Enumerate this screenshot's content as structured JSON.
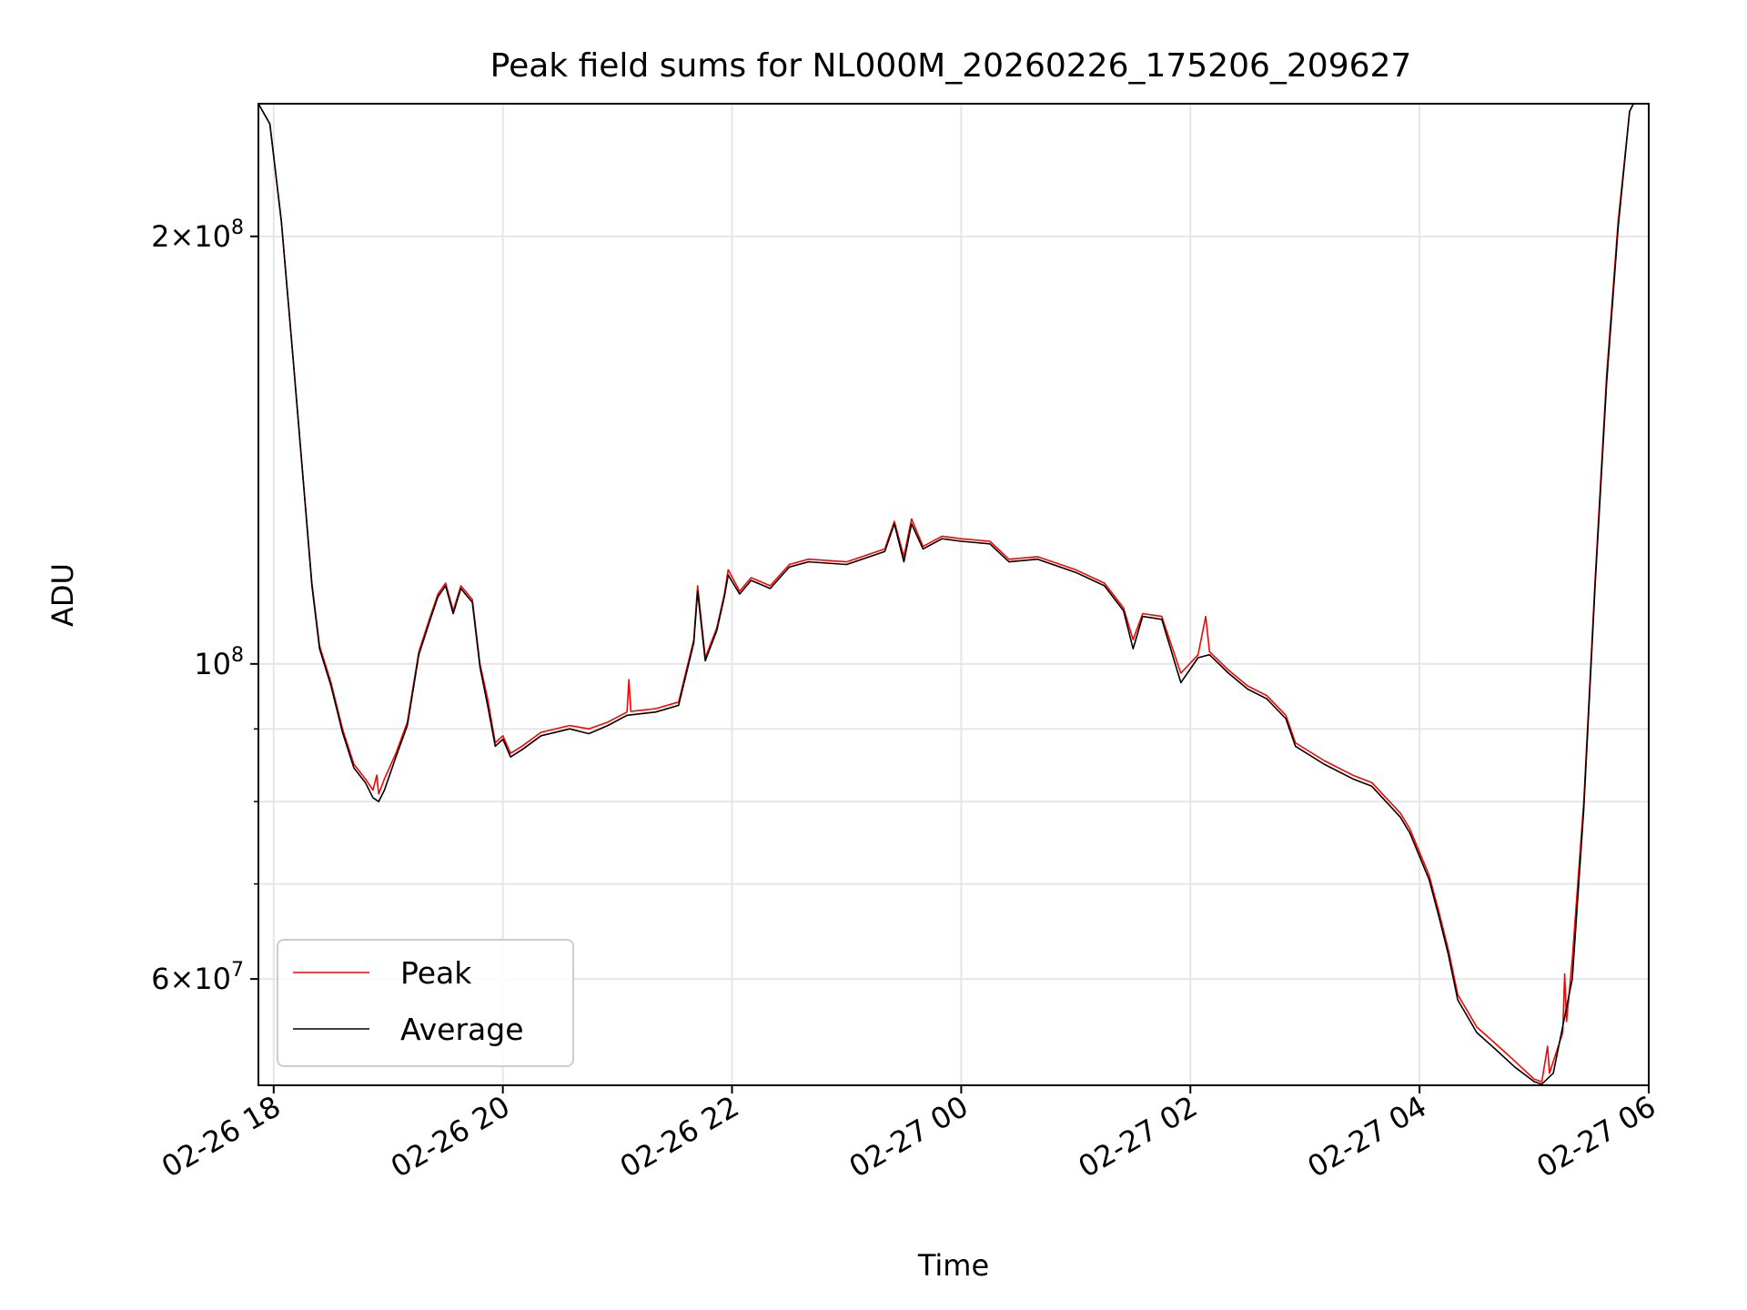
{
  "chart_data": {
    "type": "line",
    "title": "Peak field sums for NL000M_20260226_175206_209627",
    "xlabel": "Time",
    "ylabel": "ADU",
    "y_scale": "log",
    "grid": true,
    "legend_position": "lower-left",
    "xlim": [
      "2026-02-26 17:52",
      "2026-02-27 06:00"
    ],
    "ylim": [
      50500000,
      248000000
    ],
    "x_ticks": [
      {
        "value": "2026-02-26 18:00",
        "label": "02-26 18"
      },
      {
        "value": "2026-02-26 20:00",
        "label": "02-26 20"
      },
      {
        "value": "2026-02-26 22:00",
        "label": "02-26 22"
      },
      {
        "value": "2026-02-27 00:00",
        "label": "02-27 00"
      },
      {
        "value": "2026-02-27 02:00",
        "label": "02-27 02"
      },
      {
        "value": "2026-02-27 04:00",
        "label": "02-27 04"
      },
      {
        "value": "2026-02-27 06:00",
        "label": "02-27 06"
      }
    ],
    "y_major_ticks": [
      {
        "value": 200000000,
        "base": "2×10",
        "exp": "8"
      },
      {
        "value": 100000000,
        "base": "10",
        "exp": "8"
      },
      {
        "value": 60000000,
        "base": "6×10",
        "exp": "7"
      }
    ],
    "y_minor_ticks": [
      70000000,
      80000000,
      90000000
    ],
    "series": [
      {
        "name": "Peak",
        "color": "#ff0000",
        "points": [
          [
            "2026-02-26 17:52",
            248000000
          ],
          [
            "2026-02-26 17:58",
            240000000
          ],
          [
            "2026-02-26 18:04",
            205000000
          ],
          [
            "2026-02-26 18:10",
            165000000
          ],
          [
            "2026-02-26 18:16",
            132000000
          ],
          [
            "2026-02-26 18:20",
            114000000
          ],
          [
            "2026-02-26 18:24",
            103000000
          ],
          [
            "2026-02-26 18:30",
            97000000
          ],
          [
            "2026-02-26 18:36",
            90000000
          ],
          [
            "2026-02-26 18:42",
            85000000
          ],
          [
            "2026-02-26 18:48",
            83000000
          ],
          [
            "2026-02-26 18:52",
            81500000
          ],
          [
            "2026-02-26 18:54",
            83500000
          ],
          [
            "2026-02-26 18:55",
            81000000
          ],
          [
            "2026-02-26 18:58",
            83000000
          ],
          [
            "2026-02-26 19:04",
            86500000
          ],
          [
            "2026-02-26 19:10",
            91000000
          ],
          [
            "2026-02-26 19:16",
            102000000
          ],
          [
            "2026-02-26 19:22",
            108000000
          ],
          [
            "2026-02-26 19:26",
            112000000
          ],
          [
            "2026-02-26 19:30",
            114000000
          ],
          [
            "2026-02-26 19:34",
            109000000
          ],
          [
            "2026-02-26 19:38",
            113500000
          ],
          [
            "2026-02-26 19:44",
            111000000
          ],
          [
            "2026-02-26 19:48",
            100000000
          ],
          [
            "2026-02-26 19:52",
            94500000
          ],
          [
            "2026-02-26 19:56",
            88000000
          ],
          [
            "2026-02-26 20:00",
            89000000
          ],
          [
            "2026-02-26 20:04",
            86500000
          ],
          [
            "2026-02-26 20:10",
            87500000
          ],
          [
            "2026-02-26 20:20",
            89500000
          ],
          [
            "2026-02-26 20:35",
            90500000
          ],
          [
            "2026-02-26 20:45",
            90000000
          ],
          [
            "2026-02-26 20:55",
            91000000
          ],
          [
            "2026-02-26 21:05",
            92500000
          ],
          [
            "2026-02-26 21:06",
            97500000
          ],
          [
            "2026-02-26 21:07",
            92600000
          ],
          [
            "2026-02-26 21:20",
            93000000
          ],
          [
            "2026-02-26 21:32",
            94000000
          ],
          [
            "2026-02-26 21:40",
            104000000
          ],
          [
            "2026-02-26 21:42",
            113500000
          ],
          [
            "2026-02-26 21:46",
            101000000
          ],
          [
            "2026-02-26 21:52",
            106000000
          ],
          [
            "2026-02-26 21:56",
            112000000
          ],
          [
            "2026-02-26 21:58",
            116500000
          ],
          [
            "2026-02-26 22:04",
            112500000
          ],
          [
            "2026-02-26 22:10",
            115000000
          ],
          [
            "2026-02-26 22:20",
            113500000
          ],
          [
            "2026-02-26 22:30",
            117500000
          ],
          [
            "2026-02-26 22:40",
            118500000
          ],
          [
            "2026-02-26 23:00",
            118000000
          ],
          [
            "2026-02-26 23:20",
            120500000
          ],
          [
            "2026-02-26 23:25",
            126000000
          ],
          [
            "2026-02-26 23:30",
            119000000
          ],
          [
            "2026-02-26 23:34",
            126500000
          ],
          [
            "2026-02-26 23:40",
            121000000
          ],
          [
            "2026-02-26 23:50",
            123000000
          ],
          [
            "2026-02-27 00:00",
            122500000
          ],
          [
            "2026-02-27 00:15",
            122000000
          ],
          [
            "2026-02-27 00:25",
            118500000
          ],
          [
            "2026-02-27 00:40",
            119000000
          ],
          [
            "2026-02-27 01:00",
            116500000
          ],
          [
            "2026-02-27 01:15",
            114000000
          ],
          [
            "2026-02-27 01:25",
            109500000
          ],
          [
            "2026-02-27 01:30",
            104000000
          ],
          [
            "2026-02-27 01:35",
            108500000
          ],
          [
            "2026-02-27 01:45",
            108000000
          ],
          [
            "2026-02-27 01:55",
            98500000
          ],
          [
            "2026-02-27 02:04",
            101500000
          ],
          [
            "2026-02-27 02:08",
            108000000
          ],
          [
            "2026-02-27 02:10",
            102000000
          ],
          [
            "2026-02-27 02:20",
            99000000
          ],
          [
            "2026-02-27 02:30",
            96500000
          ],
          [
            "2026-02-27 02:40",
            95000000
          ],
          [
            "2026-02-27 02:50",
            92000000
          ],
          [
            "2026-02-27 02:55",
            88000000
          ],
          [
            "2026-02-27 03:10",
            85500000
          ],
          [
            "2026-02-27 03:25",
            83500000
          ],
          [
            "2026-02-27 03:35",
            82500000
          ],
          [
            "2026-02-27 03:50",
            78500000
          ],
          [
            "2026-02-27 03:55",
            76500000
          ],
          [
            "2026-02-27 04:05",
            71000000
          ],
          [
            "2026-02-27 04:10",
            67000000
          ],
          [
            "2026-02-27 04:15",
            63000000
          ],
          [
            "2026-02-27 04:20",
            58500000
          ],
          [
            "2026-02-27 04:30",
            55500000
          ],
          [
            "2026-02-27 04:40",
            54000000
          ],
          [
            "2026-02-27 04:50",
            52500000
          ],
          [
            "2026-02-27 05:00",
            51000000
          ],
          [
            "2026-02-27 05:04",
            50800000
          ],
          [
            "2026-02-27 05:07",
            53800000
          ],
          [
            "2026-02-27 05:08",
            51500000
          ],
          [
            "2026-02-27 05:15",
            55000000
          ],
          [
            "2026-02-27 05:16",
            60500000
          ],
          [
            "2026-02-27 05:17",
            56000000
          ],
          [
            "2026-02-27 05:20",
            62000000
          ],
          [
            "2026-02-27 05:26",
            80000000
          ],
          [
            "2026-02-27 05:32",
            115000000
          ],
          [
            "2026-02-27 05:38",
            160000000
          ],
          [
            "2026-02-27 05:44",
            205000000
          ],
          [
            "2026-02-27 05:50",
            245000000
          ],
          [
            "2026-02-27 05:52",
            248000000
          ]
        ]
      },
      {
        "name": "Average",
        "color": "#000000",
        "points": [
          [
            "2026-02-26 17:52",
            248000000
          ],
          [
            "2026-02-26 17:58",
            240000000
          ],
          [
            "2026-02-26 18:04",
            205000000
          ],
          [
            "2026-02-26 18:10",
            165000000
          ],
          [
            "2026-02-26 18:16",
            132000000
          ],
          [
            "2026-02-26 18:20",
            113500000
          ],
          [
            "2026-02-26 18:24",
            102500000
          ],
          [
            "2026-02-26 18:30",
            96500000
          ],
          [
            "2026-02-26 18:36",
            89500000
          ],
          [
            "2026-02-26 18:42",
            84500000
          ],
          [
            "2026-02-26 18:48",
            82500000
          ],
          [
            "2026-02-26 18:52",
            80500000
          ],
          [
            "2026-02-26 18:55",
            80000000
          ],
          [
            "2026-02-26 18:58",
            81500000
          ],
          [
            "2026-02-26 19:04",
            86000000
          ],
          [
            "2026-02-26 19:10",
            90500000
          ],
          [
            "2026-02-26 19:16",
            101500000
          ],
          [
            "2026-02-26 19:22",
            107500000
          ],
          [
            "2026-02-26 19:26",
            111500000
          ],
          [
            "2026-02-26 19:30",
            113500000
          ],
          [
            "2026-02-26 19:34",
            108500000
          ],
          [
            "2026-02-26 19:38",
            113000000
          ],
          [
            "2026-02-26 19:44",
            110500000
          ],
          [
            "2026-02-26 19:48",
            99500000
          ],
          [
            "2026-02-26 19:52",
            93500000
          ],
          [
            "2026-02-26 19:56",
            87500000
          ],
          [
            "2026-02-26 20:00",
            88500000
          ],
          [
            "2026-02-26 20:04",
            86000000
          ],
          [
            "2026-02-26 20:10",
            87000000
          ],
          [
            "2026-02-26 20:20",
            89000000
          ],
          [
            "2026-02-26 20:35",
            90000000
          ],
          [
            "2026-02-26 20:45",
            89300000
          ],
          [
            "2026-02-26 20:55",
            90500000
          ],
          [
            "2026-02-26 21:05",
            92000000
          ],
          [
            "2026-02-26 21:20",
            92500000
          ],
          [
            "2026-02-26 21:32",
            93500000
          ],
          [
            "2026-02-26 21:40",
            103500000
          ],
          [
            "2026-02-26 21:42",
            112500000
          ],
          [
            "2026-02-26 21:46",
            100500000
          ],
          [
            "2026-02-26 21:52",
            105500000
          ],
          [
            "2026-02-26 21:56",
            111500000
          ],
          [
            "2026-02-26 21:58",
            115500000
          ],
          [
            "2026-02-26 22:04",
            112000000
          ],
          [
            "2026-02-26 22:10",
            114500000
          ],
          [
            "2026-02-26 22:20",
            113000000
          ],
          [
            "2026-02-26 22:30",
            117000000
          ],
          [
            "2026-02-26 22:40",
            118000000
          ],
          [
            "2026-02-26 23:00",
            117500000
          ],
          [
            "2026-02-26 23:20",
            120000000
          ],
          [
            "2026-02-26 23:25",
            125500000
          ],
          [
            "2026-02-26 23:30",
            118000000
          ],
          [
            "2026-02-26 23:34",
            125500000
          ],
          [
            "2026-02-26 23:40",
            120500000
          ],
          [
            "2026-02-26 23:50",
            122500000
          ],
          [
            "2026-02-27 00:00",
            122000000
          ],
          [
            "2026-02-27 00:15",
            121500000
          ],
          [
            "2026-02-27 00:25",
            118000000
          ],
          [
            "2026-02-27 00:40",
            118500000
          ],
          [
            "2026-02-27 01:00",
            116000000
          ],
          [
            "2026-02-27 01:15",
            113500000
          ],
          [
            "2026-02-27 01:25",
            109000000
          ],
          [
            "2026-02-27 01:30",
            102500000
          ],
          [
            "2026-02-27 01:35",
            108000000
          ],
          [
            "2026-02-27 01:45",
            107500000
          ],
          [
            "2026-02-27 01:55",
            97000000
          ],
          [
            "2026-02-27 02:04",
            101000000
          ],
          [
            "2026-02-27 02:10",
            101500000
          ],
          [
            "2026-02-27 02:20",
            98500000
          ],
          [
            "2026-02-27 02:30",
            96000000
          ],
          [
            "2026-02-27 02:40",
            94500000
          ],
          [
            "2026-02-27 02:50",
            91500000
          ],
          [
            "2026-02-27 02:55",
            87500000
          ],
          [
            "2026-02-27 03:10",
            85000000
          ],
          [
            "2026-02-27 03:25",
            83000000
          ],
          [
            "2026-02-27 03:35",
            82000000
          ],
          [
            "2026-02-27 03:50",
            78000000
          ],
          [
            "2026-02-27 03:55",
            76000000
          ],
          [
            "2026-02-27 04:05",
            70500000
          ],
          [
            "2026-02-27 04:10",
            66500000
          ],
          [
            "2026-02-27 04:15",
            62500000
          ],
          [
            "2026-02-27 04:20",
            58000000
          ],
          [
            "2026-02-27 04:30",
            55000000
          ],
          [
            "2026-02-27 04:40",
            53500000
          ],
          [
            "2026-02-27 04:50",
            52000000
          ],
          [
            "2026-02-27 05:00",
            50800000
          ],
          [
            "2026-02-27 05:04",
            50600000
          ],
          [
            "2026-02-27 05:10",
            51500000
          ],
          [
            "2026-02-27 05:20",
            60000000
          ],
          [
            "2026-02-27 05:26",
            79000000
          ],
          [
            "2026-02-27 05:32",
            114000000
          ],
          [
            "2026-02-27 05:38",
            158000000
          ],
          [
            "2026-02-27 05:44",
            203000000
          ],
          [
            "2026-02-27 05:50",
            245000000
          ],
          [
            "2026-02-27 05:52",
            248000000
          ]
        ]
      }
    ]
  }
}
